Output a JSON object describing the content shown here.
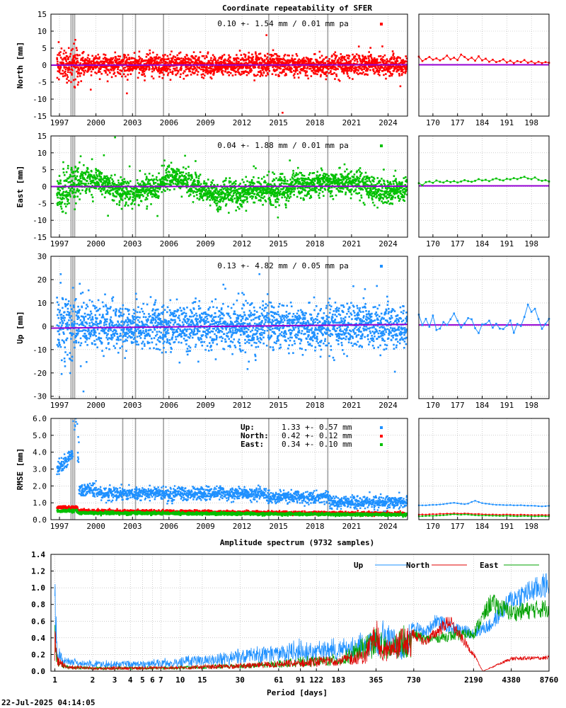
{
  "figure": {
    "title": "Coordinate repeatability of SFER",
    "timestamp": "22-Jul-2025 04:14:05"
  },
  "colors": {
    "north": "#ff0000",
    "east": "#00c000",
    "up": "#1e90ff",
    "trend": "#9400d3",
    "event_line": "#a0a0a0",
    "grid": "#b0b0b0",
    "spec_up": "#1e90ff",
    "spec_north": "#e00000",
    "spec_east": "#00a000"
  },
  "chart_data": [
    {
      "type": "scatter",
      "id": "north",
      "ylabel": "North [mm]",
      "ylim": [
        -15,
        15
      ],
      "yticks": [
        -15,
        -10,
        -5,
        0,
        5,
        10,
        15
      ],
      "xlim": [
        1996.3,
        2025.6
      ],
      "xticks": [
        1997,
        2000,
        2003,
        2006,
        2009,
        2012,
        2015,
        2018,
        2021,
        2024
      ],
      "stats_label": "0.10 +- 1.54 mm /  0.01 mm pa",
      "spread": 1.54,
      "noise_model": "flat",
      "zoom": {
        "xlim": [
          166,
          203
        ],
        "xticks": [
          170,
          177,
          184,
          191,
          198
        ],
        "ylim": [
          -15,
          15
        ],
        "trend": 0.1,
        "days": [
          166,
          167,
          168,
          169,
          170,
          171,
          172,
          173,
          174,
          175,
          176,
          177,
          178,
          179,
          180,
          181,
          182,
          183,
          184,
          185,
          186,
          187,
          188,
          189,
          190,
          191,
          192,
          193,
          194,
          195,
          196,
          197,
          198,
          199,
          200,
          201,
          202,
          203
        ],
        "values": [
          2.5,
          1.2,
          1.8,
          2.4,
          1.6,
          2.0,
          1.4,
          1.9,
          2.8,
          1.7,
          2.2,
          1.5,
          3.1,
          2.4,
          1.6,
          2.2,
          1.3,
          2.6,
          1.4,
          1.9,
          1.0,
          1.6,
          0.9,
          1.2,
          1.7,
          0.8,
          1.3,
          0.6,
          1.2,
          0.9,
          1.5,
          0.7,
          1.1,
          0.5,
          1.0,
          0.6,
          0.9,
          0.7
        ]
      }
    },
    {
      "type": "scatter",
      "id": "east",
      "ylabel": "East [mm]",
      "ylim": [
        -15,
        15
      ],
      "yticks": [
        -15,
        -10,
        -5,
        0,
        5,
        10,
        15
      ],
      "xlim": [
        1996.3,
        2025.6
      ],
      "xticks": [
        1997,
        2000,
        2003,
        2006,
        2009,
        2012,
        2015,
        2018,
        2021,
        2024
      ],
      "stats_label": "0.04 +- 1.88 mm /  0.01 mm pa",
      "spread": 1.88,
      "noise_model": "seasonal",
      "zoom": {
        "xlim": [
          166,
          203
        ],
        "xticks": [
          170,
          177,
          184,
          191,
          198
        ],
        "ylim": [
          -15,
          15
        ],
        "trend": 0.2,
        "days": [
          166,
          167,
          168,
          169,
          170,
          171,
          172,
          173,
          174,
          175,
          176,
          177,
          178,
          179,
          180,
          181,
          182,
          183,
          184,
          185,
          186,
          187,
          188,
          189,
          190,
          191,
          192,
          193,
          194,
          195,
          196,
          197,
          198,
          199,
          200,
          201,
          202,
          203
        ],
        "values": [
          1.0,
          0.4,
          1.3,
          1.5,
          1.1,
          1.8,
          1.4,
          1.2,
          1.7,
          1.3,
          1.6,
          1.2,
          1.5,
          1.9,
          1.6,
          1.4,
          1.7,
          2.2,
          1.8,
          2.0,
          1.6,
          2.1,
          2.4,
          2.0,
          1.8,
          2.3,
          2.1,
          2.5,
          2.2,
          2.6,
          2.9,
          2.4,
          2.2,
          2.7,
          2.0,
          1.7,
          1.9,
          1.5
        ]
      }
    },
    {
      "type": "scatter",
      "id": "up",
      "ylabel": "Up [mm]",
      "ylim": [
        -31,
        30
      ],
      "yticks": [
        -30,
        -20,
        -10,
        0,
        10,
        20,
        30
      ],
      "xlim": [
        1996.3,
        2025.6
      ],
      "xticks": [
        1997,
        2000,
        2003,
        2006,
        2009,
        2012,
        2015,
        2018,
        2021,
        2024
      ],
      "stats_label": "0.13 +- 4.82 mm /  0.05 mm pa",
      "spread": 4.82,
      "noise_model": "wide",
      "zoom": {
        "xlim": [
          166,
          203
        ],
        "xticks": [
          170,
          177,
          184,
          191,
          198
        ],
        "ylim": [
          -31,
          30
        ],
        "trend": 0.6,
        "days": [
          166,
          167,
          168,
          169,
          170,
          171,
          172,
          173,
          174,
          175,
          176,
          177,
          178,
          179,
          180,
          181,
          182,
          183,
          184,
          185,
          186,
          187,
          188,
          189,
          190,
          191,
          192,
          193,
          194,
          195,
          196,
          197,
          198,
          199,
          200,
          201,
          202,
          203
        ],
        "values": [
          5.0,
          0.5,
          3.2,
          -0.2,
          4.6,
          -1.6,
          -1.0,
          1.8,
          0.6,
          3.0,
          5.5,
          2.4,
          -0.5,
          1.2,
          3.5,
          3.0,
          -0.8,
          -2.9,
          0.8,
          1.0,
          2.4,
          -0.6,
          1.1,
          -1.0,
          -1.2,
          0.3,
          2.5,
          -2.8,
          1.0,
          0.1,
          4.0,
          9.3,
          6.2,
          7.5,
          3.1,
          -1.1,
          1.0,
          3.2
        ]
      }
    },
    {
      "type": "scatter",
      "id": "rmse",
      "ylabel": "RMSE [mm]",
      "ylim": [
        0,
        6
      ],
      "yticks": [
        0.0,
        1.0,
        2.0,
        3.0,
        4.0,
        5.0,
        6.0
      ],
      "xlim": [
        1996.3,
        2025.6
      ],
      "xticks": [
        1997,
        2000,
        2003,
        2006,
        2009,
        2012,
        2015,
        2018,
        2021,
        2024
      ],
      "legend": [
        {
          "name": "Up:",
          "stats": "1.33 +- 0.57 mm"
        },
        {
          "name": "North:",
          "stats": "0.42 +- 0.12 mm"
        },
        {
          "name": "East:",
          "stats": "0.34 +- 0.10 mm"
        }
      ],
      "zoom": {
        "xlim": [
          166,
          203
        ],
        "xticks": [
          170,
          177,
          184,
          191,
          198
        ],
        "ylim": [
          0,
          6
        ],
        "up": [
          0.85,
          0.85,
          0.85,
          0.87,
          0.88,
          0.88,
          0.9,
          0.92,
          0.95,
          0.98,
          1.0,
          0.97,
          0.94,
          0.92,
          0.95,
          1.05,
          1.12,
          1.05,
          0.98,
          0.95,
          0.93,
          0.9,
          0.88,
          0.88,
          0.87,
          0.86,
          0.87,
          0.85,
          0.85,
          0.86,
          0.84,
          0.83,
          0.83,
          0.82,
          0.8,
          0.79,
          0.8,
          0.82
        ],
        "north": [
          0.3,
          0.31,
          0.3,
          0.32,
          0.33,
          0.32,
          0.35,
          0.34,
          0.36,
          0.35,
          0.38,
          0.36,
          0.35,
          0.37,
          0.36,
          0.34,
          0.33,
          0.34,
          0.32,
          0.31,
          0.3,
          0.31,
          0.3,
          0.29,
          0.3,
          0.31,
          0.3,
          0.29,
          0.28,
          0.3,
          0.29,
          0.28,
          0.28,
          0.27,
          0.28,
          0.28,
          0.27,
          0.28
        ],
        "east": [
          0.2,
          0.21,
          0.22,
          0.23,
          0.22,
          0.24,
          0.25,
          0.26,
          0.28,
          0.3,
          0.32,
          0.3,
          0.29,
          0.31,
          0.3,
          0.28,
          0.26,
          0.25,
          0.24,
          0.25,
          0.24,
          0.23,
          0.23,
          0.22,
          0.22,
          0.23,
          0.22,
          0.21,
          0.2,
          0.21,
          0.22,
          0.21,
          0.2,
          0.2,
          0.2,
          0.21,
          0.2,
          0.2
        ]
      }
    },
    {
      "type": "line",
      "id": "spectrum",
      "title": "Amplitude spectrum (9732 samples)",
      "xlabel": "Period [days]",
      "scale": "log-x",
      "ylim": [
        0,
        1.4
      ],
      "yticks": [
        0.0,
        0.2,
        0.4,
        0.6,
        0.8,
        1.0,
        1.2,
        1.4
      ],
      "xticks": [
        1,
        2,
        3,
        4,
        5,
        6,
        7,
        10,
        15,
        30,
        61,
        91,
        122,
        183,
        365,
        730,
        2190,
        4380,
        8760
      ],
      "xlim_days": [
        0.93,
        8760
      ],
      "legend_position": "top-right",
      "series": [
        {
          "name": "Up",
          "peaks": [
            [
              1.0,
              1.16
            ],
            [
              1.04,
              0.42
            ],
            [
              1.1,
              0.25
            ],
            [
              1.3,
              0.16
            ],
            [
              2,
              0.12
            ],
            [
              5,
              0.12
            ],
            [
              10,
              0.16
            ],
            [
              20,
              0.2
            ],
            [
              40,
              0.28
            ],
            [
              60,
              0.32
            ],
            [
              90,
              0.35
            ],
            [
              150,
              0.38
            ],
            [
              250,
              0.4
            ],
            [
              365,
              0.48
            ],
            [
              400,
              0.6
            ],
            [
              500,
              0.52
            ],
            [
              600,
              0.42
            ],
            [
              730,
              0.55
            ],
            [
              900,
              0.45
            ],
            [
              1100,
              0.62
            ],
            [
              1400,
              0.52
            ],
            [
              2190,
              0.46
            ],
            [
              3000,
              0.55
            ],
            [
              4380,
              0.86
            ],
            [
              8760,
              1.05
            ]
          ]
        },
        {
          "name": "North",
          "peaks": [
            [
              1.0,
              0.75
            ],
            [
              1.04,
              0.2
            ],
            [
              1.2,
              0.08
            ],
            [
              2,
              0.05
            ],
            [
              10,
              0.06
            ],
            [
              40,
              0.1
            ],
            [
              100,
              0.14
            ],
            [
              200,
              0.2
            ],
            [
              300,
              0.25
            ],
            [
              365,
              0.75
            ],
            [
              400,
              0.3
            ],
            [
              600,
              0.52
            ],
            [
              900,
              0.35
            ],
            [
              1400,
              0.6
            ],
            [
              2190,
              0.2
            ],
            [
              2600,
              0.0
            ],
            [
              4380,
              0.15
            ],
            [
              8760,
              0.16
            ]
          ]
        },
        {
          "name": "East",
          "peaks": [
            [
              1.0,
              0.58
            ],
            [
              1.04,
              0.18
            ],
            [
              1.2,
              0.07
            ],
            [
              2,
              0.05
            ],
            [
              10,
              0.06
            ],
            [
              40,
              0.1
            ],
            [
              100,
              0.16
            ],
            [
              200,
              0.2
            ],
            [
              365,
              0.52
            ],
            [
              450,
              0.35
            ],
            [
              600,
              0.5
            ],
            [
              900,
              0.38
            ],
            [
              1400,
              0.42
            ],
            [
              2190,
              0.45
            ],
            [
              3000,
              0.82
            ],
            [
              4380,
              0.7
            ],
            [
              8760,
              0.76
            ]
          ]
        }
      ]
    }
  ],
  "events": [
    1997.95,
    1998.1,
    1998.25,
    2002.2,
    2003.25,
    2005.55,
    2014.2,
    2019.05
  ]
}
